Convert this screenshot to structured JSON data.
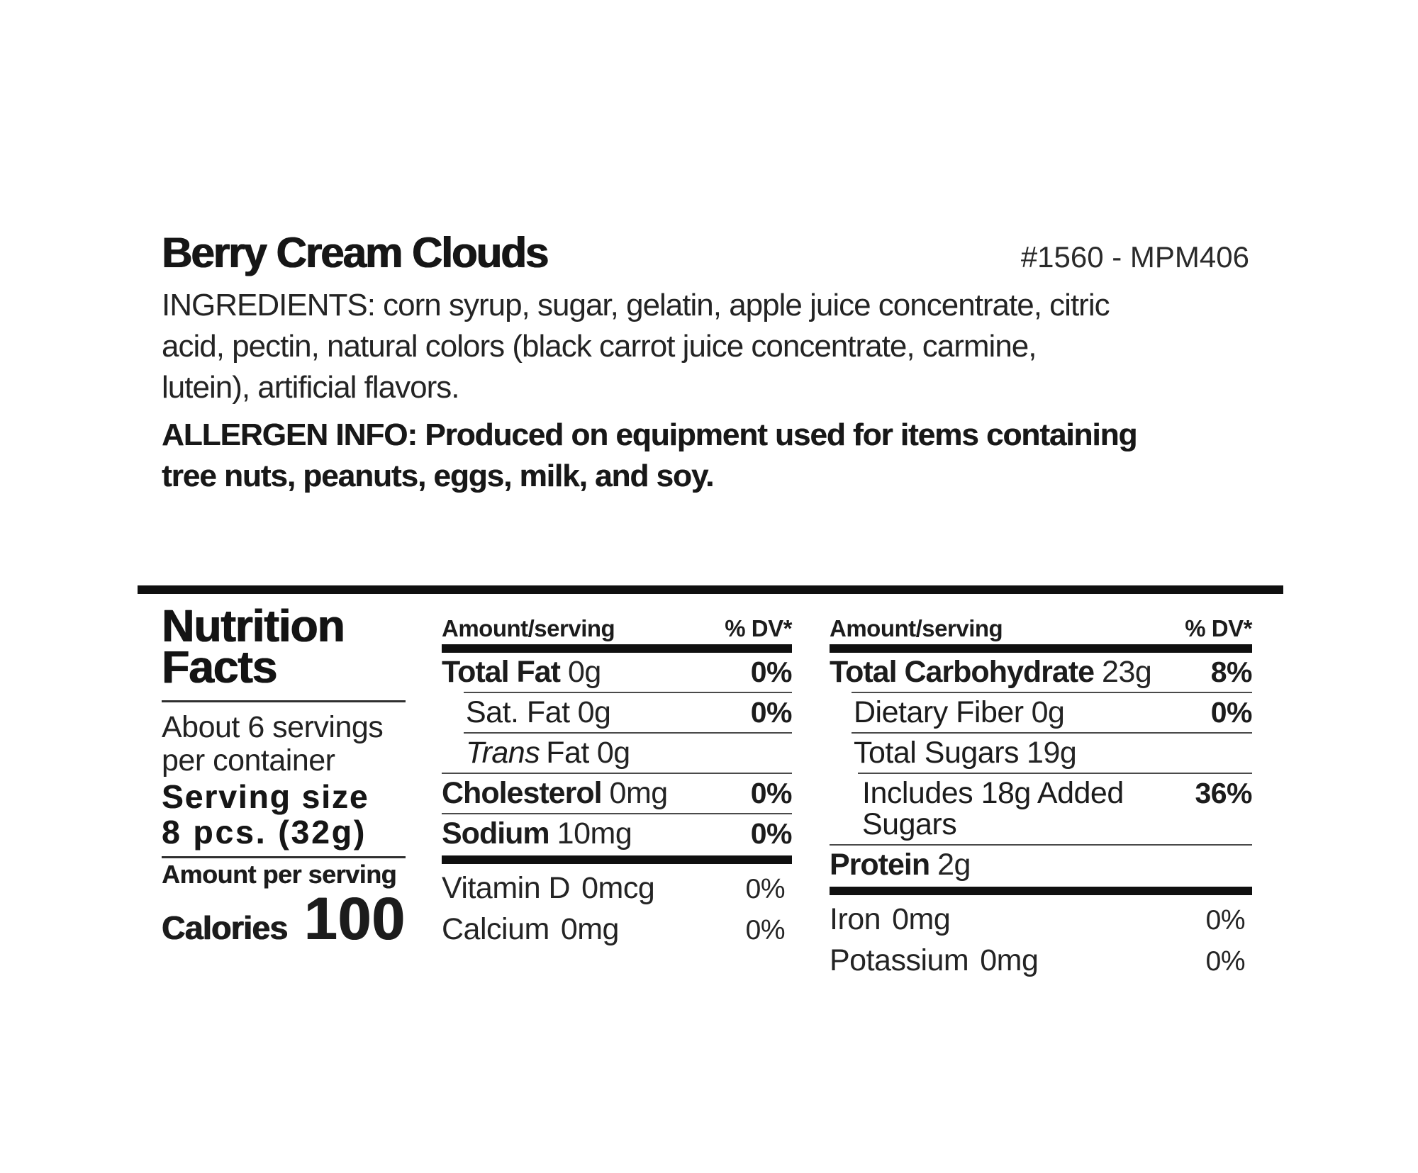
{
  "header": {
    "product_name": "Berry Cream Clouds",
    "item_code": "#1560 - MPM406",
    "ingredients_lines": [
      "INGREDIENTS: corn syrup, sugar, gelatin, apple juice concentrate, citric",
      "acid, pectin, natural colors (black carrot juice concentrate, carmine,",
      "lutein), artificial flavors."
    ],
    "allergen_lines": [
      "ALLERGEN INFO: Produced on equipment used for items containing",
      "tree nuts, peanuts, eggs, milk, and soy."
    ]
  },
  "panel": {
    "title_line1": "Nutrition",
    "title_line2": "Facts",
    "servings_line1": "About 6 servings",
    "servings_line2": "per container",
    "serving_size_label": "Serving size",
    "serving_size_value": "8 pcs. (32g)",
    "amount_per_serving_label": "Amount per serving",
    "calories_label": "Calories",
    "calories_value": "100",
    "column_header": {
      "amount": "Amount/serving",
      "dv": "% DV*"
    },
    "col1": {
      "rows": [
        {
          "name": "Total Fat",
          "value": "0g",
          "dv": "0%"
        },
        {
          "name": "Sat. Fat",
          "value": "0g",
          "dv": "0%"
        },
        {
          "name_italic": "Trans",
          "name": "Fat",
          "value": "0g",
          "dv": ""
        },
        {
          "name": "Cholesterol",
          "value": "0mg",
          "dv": "0%"
        },
        {
          "name": "Sodium",
          "value": "10mg",
          "dv": "0%"
        }
      ],
      "micronutrients": [
        {
          "name": "Vitamin D",
          "value": "0mcg",
          "dv": "0%"
        },
        {
          "name": "Calcium",
          "value": "0mg",
          "dv": "0%"
        }
      ]
    },
    "col2": {
      "rows": [
        {
          "name": "Total Carbohydrate",
          "value": "23g",
          "dv": "8%"
        },
        {
          "name": "Dietary Fiber",
          "value": "0g",
          "dv": "0%"
        },
        {
          "name": "Total Sugars",
          "value": "19g",
          "dv": ""
        },
        {
          "name": "Includes 18g Added Sugars",
          "value": "",
          "dv": "36%"
        },
        {
          "name": "Protein",
          "value": "2g",
          "dv": ""
        }
      ],
      "micronutrients": [
        {
          "name": "Iron",
          "value": "0mg",
          "dv": "0%"
        },
        {
          "name": "Potassium",
          "value": "0mg",
          "dv": "0%"
        }
      ]
    }
  },
  "colors": {
    "ink": "#1c1c1c",
    "thick_bar": "#101010",
    "hairline": "#4a4a4a",
    "background": "#ffffff"
  }
}
